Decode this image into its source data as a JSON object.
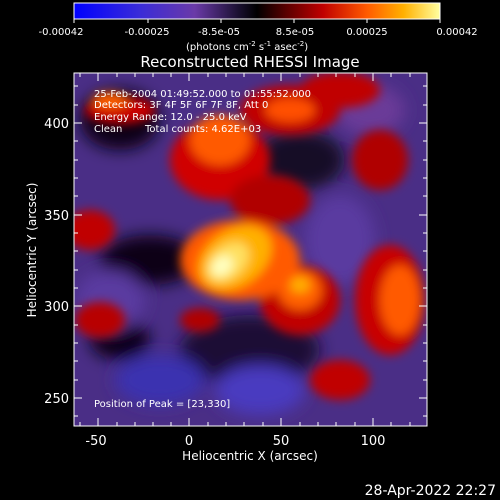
{
  "colorbar": {
    "tick_labels": [
      "-0.00042",
      "-0.00025",
      "-8.5e-05",
      "8.5e-05",
      "0.00025",
      "0.00042"
    ],
    "unit_main": "(photons cm",
    "unit_sup1": "-2",
    "unit_mid1": " s",
    "unit_sup2": "-1",
    "unit_mid2": " asec",
    "unit_sup3": "-2",
    "unit_end": ")"
  },
  "image": {
    "title": "Reconstructed RHESSI Image",
    "overlay": {
      "time_range": "25-Feb-2004 01:49:52.000 to 01:55:52.000",
      "detectors": "Detectors: 3F 4F 5F 6F 7F 8F, Att 0",
      "energy_range": "Energy Range: 12.0 - 25.0 keV",
      "clean_label": "Clean",
      "total_counts": "Total counts: 4.62E+03",
      "peak_position": "Position of Peak = [23,330]"
    },
    "x_axis": {
      "label": "Heliocentric X (arcsec)",
      "ticks": [
        "-50",
        "0",
        "50",
        "100"
      ]
    },
    "y_axis": {
      "label": "Heliocentric Y (arcsec)",
      "ticks": [
        "250",
        "300",
        "350",
        "400"
      ]
    }
  },
  "footer": {
    "timestamp": "28-Apr-2022 22:27"
  },
  "colors": {
    "background": "#000000",
    "text": "#ffffff"
  }
}
